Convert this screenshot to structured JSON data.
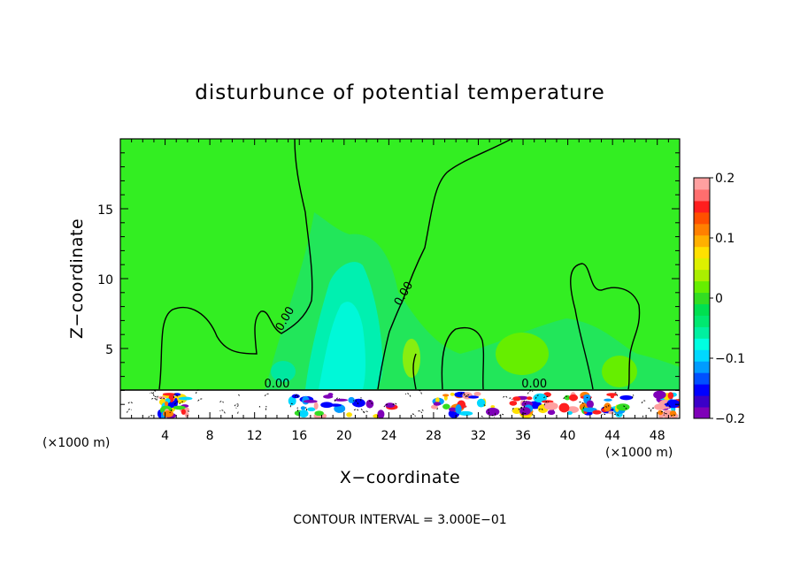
{
  "chart_data": {
    "type": "heatmap",
    "title": "disturbunce of potential temperature",
    "xlabel": "X−coordinate",
    "ylabel": "Z−coordinate",
    "x_unit": "(×1000 m)",
    "y_unit": "(×1000 m)",
    "xlim": [
      0,
      50
    ],
    "ylim": [
      0,
      20
    ],
    "x_ticks": [
      4,
      8,
      12,
      16,
      20,
      24,
      28,
      32,
      36,
      40,
      44,
      48
    ],
    "y_ticks": [
      5,
      10,
      15
    ],
    "colorbar": {
      "range": [
        -0.2,
        0.2
      ],
      "tick_labels": [
        "0.2",
        "0.1",
        "0",
        "−0.1",
        "−0.2"
      ],
      "tick_values": [
        0.2,
        0.1,
        0,
        -0.1,
        -0.2
      ],
      "colors": [
        "#7f00b8",
        "#3b00c8",
        "#0000ff",
        "#0050ff",
        "#009cff",
        "#00d8ff",
        "#00ffe0",
        "#00f0a0",
        "#00e870",
        "#00e050",
        "#33dd22",
        "#66ee00",
        "#aaee00",
        "#ddf000",
        "#ffe000",
        "#ffb000",
        "#ff8000",
        "#ff5000",
        "#ff1e1e",
        "#ff6e6e",
        "#ffa0a0"
      ]
    },
    "contour_labels": [
      {
        "text": "0.00",
        "x": 15.0,
        "y": 7.0
      },
      {
        "text": "0.00",
        "x": 25.6,
        "y": 8.8
      },
      {
        "text": "0.00",
        "x": 14.0,
        "y": 2.2
      },
      {
        "text": "0.00",
        "x": 37.0,
        "y": 2.2
      }
    ],
    "contour_interval_text": "CONTOUR INTERVAL = 3.000E−01"
  }
}
